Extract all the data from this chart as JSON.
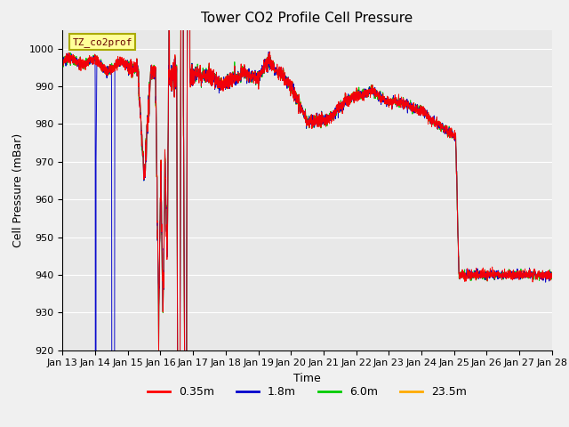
{
  "title": "Tower CO2 Profile Cell Pressure",
  "xlabel": "Time",
  "ylabel": "Cell Pressure (mBar)",
  "ylim": [
    920,
    1005
  ],
  "yticks": [
    920,
    930,
    940,
    950,
    960,
    970,
    980,
    990,
    1000
  ],
  "x_tick_labels": [
    "Jan 13",
    "Jan 14",
    "Jan 15",
    "Jan 16",
    "Jan 17",
    "Jan 18",
    "Jan 19",
    "Jan 20",
    "Jan 21",
    "Jan 22",
    "Jan 23",
    "Jan 24",
    "Jan 25",
    "Jan 26",
    "Jan 27",
    "Jan 28"
  ],
  "legend_labels": [
    "0.35m",
    "1.8m",
    "6.0m",
    "23.5m"
  ],
  "legend_colors": [
    "#ff0000",
    "#0000cc",
    "#00cc00",
    "#ffaa00"
  ],
  "annotation_text": "TZ_co2prof",
  "annotation_box_color": "#ffff99",
  "annotation_border_color": "#aaaa00",
  "plot_bg_color": "#e8e8e8",
  "fig_bg_color": "#f0f0f0",
  "grid_color": "#ffffff",
  "title_fontsize": 11,
  "axis_label_fontsize": 9,
  "tick_fontsize": 8,
  "linewidth": 0.8
}
